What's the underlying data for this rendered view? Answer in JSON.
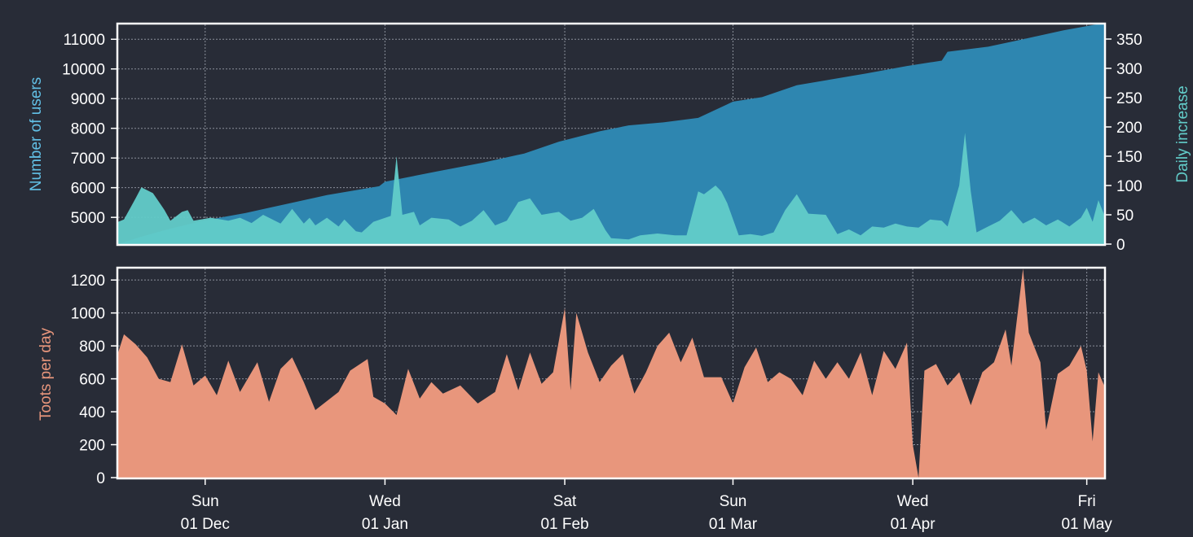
{
  "chart_data": [
    {
      "type": "area",
      "x_start": "2019-11-16",
      "x_end": "2020-05-04",
      "x_ticks": [
        {
          "date": "2019-12-01",
          "day": "Sun",
          "label": "01 Dec"
        },
        {
          "date": "2020-01-01",
          "day": "Wed",
          "label": "01 Jan"
        },
        {
          "date": "2020-02-01",
          "day": "Sat",
          "label": "01 Feb"
        },
        {
          "date": "2020-03-01",
          "day": "Sun",
          "label": "01 Mar"
        },
        {
          "date": "2020-04-01",
          "day": "Wed",
          "label": "01 Apr"
        },
        {
          "date": "2020-05-01",
          "day": "Fri",
          "label": "01 May"
        }
      ],
      "grid": true,
      "left_axis": {
        "label": "Number of users",
        "ylim": [
          4100,
          11500
        ],
        "ticks": [
          5000,
          6000,
          7000,
          8000,
          9000,
          10000,
          11000
        ]
      },
      "right_axis": {
        "label": "Daily increase",
        "ylim": [
          0,
          375
        ],
        "ticks": [
          0,
          50,
          100,
          150,
          200,
          250,
          300,
          350
        ]
      },
      "series": [
        {
          "axis": "left",
          "color": "#2e86b0",
          "points": [
            [
              "2019-11-16",
              4100
            ],
            [
              "2019-11-20",
              4350
            ],
            [
              "2019-11-25",
              4620
            ],
            [
              "2019-12-01",
              4900
            ],
            [
              "2019-12-08",
              5150
            ],
            [
              "2019-12-15",
              5450
            ],
            [
              "2019-12-22",
              5750
            ],
            [
              "2019-12-31",
              6050
            ],
            [
              "2020-01-01",
              6200
            ],
            [
              "2020-01-10",
              6550
            ],
            [
              "2020-01-18",
              6850
            ],
            [
              "2020-01-25",
              7150
            ],
            [
              "2020-01-31",
              7550
            ],
            [
              "2020-02-07",
              7900
            ],
            [
              "2020-02-12",
              8100
            ],
            [
              "2020-02-18",
              8200
            ],
            [
              "2020-02-24",
              8350
            ],
            [
              "2020-03-01",
              8900
            ],
            [
              "2020-03-06",
              9050
            ],
            [
              "2020-03-12",
              9450
            ],
            [
              "2020-03-18",
              9650
            ],
            [
              "2020-03-24",
              9850
            ],
            [
              "2020-03-31",
              10100
            ],
            [
              "2020-04-06",
              10280
            ],
            [
              "2020-04-07",
              10580
            ],
            [
              "2020-04-14",
              10750
            ],
            [
              "2020-04-20",
              11000
            ],
            [
              "2020-04-27",
              11300
            ],
            [
              "2020-05-04",
              11550
            ]
          ]
        },
        {
          "axis": "right",
          "color": "#62ccc9",
          "points": [
            [
              "2019-11-16",
              38
            ],
            [
              "2019-11-17",
              42
            ],
            [
              "2019-11-19",
              78
            ],
            [
              "2019-11-20",
              97
            ],
            [
              "2019-11-22",
              87
            ],
            [
              "2019-11-24",
              58
            ],
            [
              "2019-11-25",
              40
            ],
            [
              "2019-11-27",
              55
            ],
            [
              "2019-11-28",
              58
            ],
            [
              "2019-11-29",
              40
            ],
            [
              "2019-12-02",
              45
            ],
            [
              "2019-12-05",
              40
            ],
            [
              "2019-12-07",
              45
            ],
            [
              "2019-12-09",
              36
            ],
            [
              "2019-12-11",
              50
            ],
            [
              "2019-12-14",
              35
            ],
            [
              "2019-12-16",
              60
            ],
            [
              "2019-12-18",
              35
            ],
            [
              "2019-12-19",
              45
            ],
            [
              "2019-12-20",
              32
            ],
            [
              "2019-12-22",
              45
            ],
            [
              "2019-12-24",
              30
            ],
            [
              "2019-12-25",
              42
            ],
            [
              "2019-12-27",
              22
            ],
            [
              "2019-12-28",
              20
            ],
            [
              "2019-12-30",
              38
            ],
            [
              "2020-01-02",
              48
            ],
            [
              "2020-01-03",
              150
            ],
            [
              "2020-01-04",
              50
            ],
            [
              "2020-01-06",
              55
            ],
            [
              "2020-01-07",
              32
            ],
            [
              "2020-01-09",
              45
            ],
            [
              "2020-01-12",
              42
            ],
            [
              "2020-01-14",
              30
            ],
            [
              "2020-01-16",
              40
            ],
            [
              "2020-01-18",
              58
            ],
            [
              "2020-01-20",
              32
            ],
            [
              "2020-01-22",
              40
            ],
            [
              "2020-01-24",
              72
            ],
            [
              "2020-01-26",
              78
            ],
            [
              "2020-01-28",
              50
            ],
            [
              "2020-01-31",
              55
            ],
            [
              "2020-02-02",
              40
            ],
            [
              "2020-02-04",
              45
            ],
            [
              "2020-02-06",
              60
            ],
            [
              "2020-02-08",
              24
            ],
            [
              "2020-02-09",
              10
            ],
            [
              "2020-02-12",
              8
            ],
            [
              "2020-02-14",
              15
            ],
            [
              "2020-02-17",
              18
            ],
            [
              "2020-02-20",
              15
            ],
            [
              "2020-02-22",
              15
            ],
            [
              "2020-02-24",
              90
            ],
            [
              "2020-02-25",
              85
            ],
            [
              "2020-02-27",
              100
            ],
            [
              "2020-02-28",
              90
            ],
            [
              "2020-02-29",
              70
            ],
            [
              "2020-03-02",
              15
            ],
            [
              "2020-03-04",
              17
            ],
            [
              "2020-03-06",
              14
            ],
            [
              "2020-03-08",
              20
            ],
            [
              "2020-03-10",
              58
            ],
            [
              "2020-03-12",
              85
            ],
            [
              "2020-03-14",
              52
            ],
            [
              "2020-03-17",
              50
            ],
            [
              "2020-03-19",
              17
            ],
            [
              "2020-03-21",
              25
            ],
            [
              "2020-03-23",
              15
            ],
            [
              "2020-03-25",
              30
            ],
            [
              "2020-03-27",
              28
            ],
            [
              "2020-03-29",
              35
            ],
            [
              "2020-03-31",
              30
            ],
            [
              "2020-04-02",
              28
            ],
            [
              "2020-04-04",
              42
            ],
            [
              "2020-04-06",
              40
            ],
            [
              "2020-04-07",
              30
            ],
            [
              "2020-04-09",
              100
            ],
            [
              "2020-04-10",
              190
            ],
            [
              "2020-04-11",
              90
            ],
            [
              "2020-04-12",
              20
            ],
            [
              "2020-04-14",
              30
            ],
            [
              "2020-04-16",
              40
            ],
            [
              "2020-04-18",
              58
            ],
            [
              "2020-04-20",
              35
            ],
            [
              "2020-04-22",
              45
            ],
            [
              "2020-04-24",
              32
            ],
            [
              "2020-04-26",
              42
            ],
            [
              "2020-04-28",
              30
            ],
            [
              "2020-04-30",
              45
            ],
            [
              "2020-05-01",
              62
            ],
            [
              "2020-05-02",
              38
            ],
            [
              "2020-05-03",
              75
            ],
            [
              "2020-05-04",
              50
            ]
          ]
        }
      ]
    },
    {
      "type": "area",
      "x_start": "2019-11-16",
      "x_end": "2020-05-04",
      "grid": true,
      "ylabel": "Toots per day",
      "ylim": [
        0,
        1270
      ],
      "yticks": [
        0,
        200,
        400,
        600,
        800,
        1000,
        1200
      ],
      "series": [
        {
          "color": "#e8967c",
          "points": [
            [
              "2019-11-16",
              760
            ],
            [
              "2019-11-17",
              870
            ],
            [
              "2019-11-19",
              810
            ],
            [
              "2019-11-21",
              730
            ],
            [
              "2019-11-23",
              600
            ],
            [
              "2019-11-25",
              580
            ],
            [
              "2019-11-27",
              810
            ],
            [
              "2019-11-29",
              560
            ],
            [
              "2019-12-01",
              620
            ],
            [
              "2019-12-03",
              500
            ],
            [
              "2019-12-05",
              710
            ],
            [
              "2019-12-07",
              520
            ],
            [
              "2019-12-10",
              700
            ],
            [
              "2019-12-12",
              460
            ],
            [
              "2019-12-14",
              660
            ],
            [
              "2019-12-16",
              730
            ],
            [
              "2019-12-18",
              580
            ],
            [
              "2019-12-20",
              410
            ],
            [
              "2019-12-24",
              520
            ],
            [
              "2019-12-26",
              650
            ],
            [
              "2019-12-29",
              720
            ],
            [
              "2019-12-30",
              490
            ],
            [
              "2020-01-01",
              450
            ],
            [
              "2020-01-03",
              380
            ],
            [
              "2020-01-05",
              660
            ],
            [
              "2020-01-07",
              480
            ],
            [
              "2020-01-09",
              580
            ],
            [
              "2020-01-11",
              510
            ],
            [
              "2020-01-14",
              560
            ],
            [
              "2020-01-17",
              450
            ],
            [
              "2020-01-20",
              520
            ],
            [
              "2020-01-22",
              750
            ],
            [
              "2020-01-24",
              530
            ],
            [
              "2020-01-26",
              760
            ],
            [
              "2020-01-28",
              570
            ],
            [
              "2020-01-30",
              640
            ],
            [
              "2020-02-01",
              1030
            ],
            [
              "2020-02-02",
              530
            ],
            [
              "2020-02-03",
              1000
            ],
            [
              "2020-02-05",
              760
            ],
            [
              "2020-02-07",
              580
            ],
            [
              "2020-02-09",
              680
            ],
            [
              "2020-02-11",
              750
            ],
            [
              "2020-02-13",
              510
            ],
            [
              "2020-02-15",
              640
            ],
            [
              "2020-02-17",
              800
            ],
            [
              "2020-02-19",
              880
            ],
            [
              "2020-02-21",
              700
            ],
            [
              "2020-02-23",
              850
            ],
            [
              "2020-02-25",
              610
            ],
            [
              "2020-02-28",
              610
            ],
            [
              "2020-03-01",
              450
            ],
            [
              "2020-03-03",
              670
            ],
            [
              "2020-03-05",
              790
            ],
            [
              "2020-03-07",
              580
            ],
            [
              "2020-03-09",
              640
            ],
            [
              "2020-03-11",
              600
            ],
            [
              "2020-03-13",
              500
            ],
            [
              "2020-03-15",
              710
            ],
            [
              "2020-03-17",
              600
            ],
            [
              "2020-03-19",
              700
            ],
            [
              "2020-03-21",
              600
            ],
            [
              "2020-03-23",
              760
            ],
            [
              "2020-03-25",
              500
            ],
            [
              "2020-03-27",
              770
            ],
            [
              "2020-03-29",
              660
            ],
            [
              "2020-03-31",
              820
            ],
            [
              "2020-04-01",
              200
            ],
            [
              "2020-04-02",
              0
            ],
            [
              "2020-04-03",
              650
            ],
            [
              "2020-04-05",
              690
            ],
            [
              "2020-04-07",
              560
            ],
            [
              "2020-04-09",
              640
            ],
            [
              "2020-04-11",
              440
            ],
            [
              "2020-04-13",
              640
            ],
            [
              "2020-04-15",
              700
            ],
            [
              "2020-04-17",
              900
            ],
            [
              "2020-04-18",
              680
            ],
            [
              "2020-04-20",
              1270
            ],
            [
              "2020-04-21",
              880
            ],
            [
              "2020-04-23",
              700
            ],
            [
              "2020-04-24",
              290
            ],
            [
              "2020-04-26",
              630
            ],
            [
              "2020-04-28",
              680
            ],
            [
              "2020-04-30",
              800
            ],
            [
              "2020-05-01",
              650
            ],
            [
              "2020-05-02",
              220
            ],
            [
              "2020-05-03",
              640
            ],
            [
              "2020-05-04",
              560
            ]
          ]
        }
      ]
    }
  ]
}
